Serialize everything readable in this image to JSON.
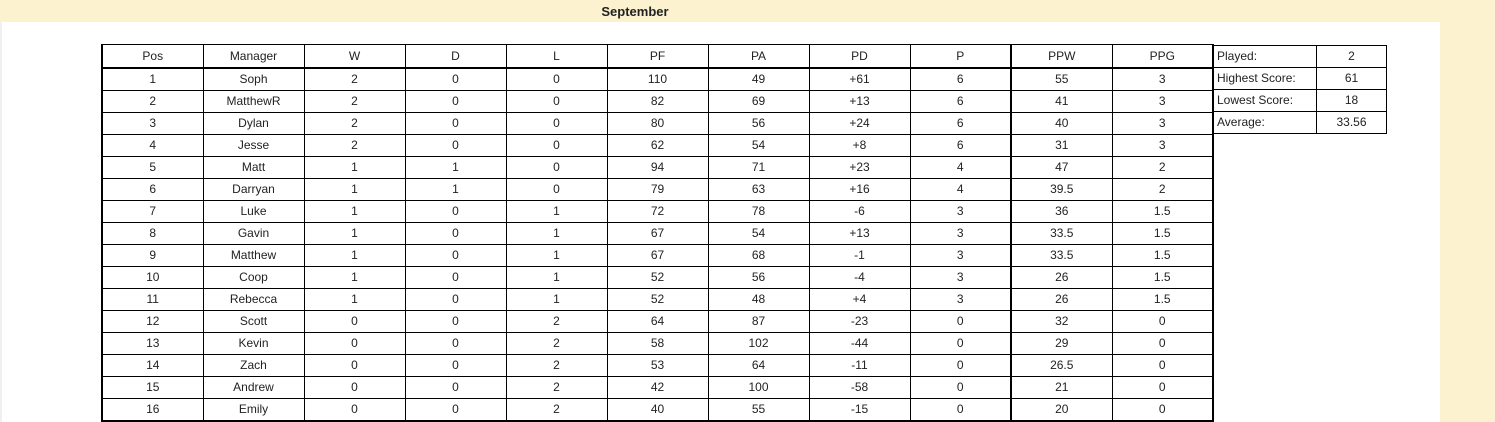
{
  "sheet": {
    "title": "September"
  },
  "standings": {
    "headers": {
      "pos": "Pos",
      "manager": "Manager",
      "w": "W",
      "d": "D",
      "l": "L",
      "pf": "PF",
      "pa": "PA",
      "pd": "PD",
      "p": "P",
      "ppw": "PPW",
      "ppg": "PPG"
    },
    "rows": [
      {
        "pos": "1",
        "manager": "Soph",
        "w": "2",
        "d": "0",
        "l": "0",
        "pf": "110",
        "pa": "49",
        "pd": "+61",
        "p": "6",
        "ppw": "55",
        "ppg": "3"
      },
      {
        "pos": "2",
        "manager": "MatthewR",
        "w": "2",
        "d": "0",
        "l": "0",
        "pf": "82",
        "pa": "69",
        "pd": "+13",
        "p": "6",
        "ppw": "41",
        "ppg": "3"
      },
      {
        "pos": "3",
        "manager": "Dylan",
        "w": "2",
        "d": "0",
        "l": "0",
        "pf": "80",
        "pa": "56",
        "pd": "+24",
        "p": "6",
        "ppw": "40",
        "ppg": "3"
      },
      {
        "pos": "4",
        "manager": "Jesse",
        "w": "2",
        "d": "0",
        "l": "0",
        "pf": "62",
        "pa": "54",
        "pd": "+8",
        "p": "6",
        "ppw": "31",
        "ppg": "3"
      },
      {
        "pos": "5",
        "manager": "Matt",
        "w": "1",
        "d": "1",
        "l": "0",
        "pf": "94",
        "pa": "71",
        "pd": "+23",
        "p": "4",
        "ppw": "47",
        "ppg": "2"
      },
      {
        "pos": "6",
        "manager": "Darryan",
        "w": "1",
        "d": "1",
        "l": "0",
        "pf": "79",
        "pa": "63",
        "pd": "+16",
        "p": "4",
        "ppw": "39.5",
        "ppg": "2"
      },
      {
        "pos": "7",
        "manager": "Luke",
        "w": "1",
        "d": "0",
        "l": "1",
        "pf": "72",
        "pa": "78",
        "pd": "-6",
        "p": "3",
        "ppw": "36",
        "ppg": "1.5"
      },
      {
        "pos": "8",
        "manager": "Gavin",
        "w": "1",
        "d": "0",
        "l": "1",
        "pf": "67",
        "pa": "54",
        "pd": "+13",
        "p": "3",
        "ppw": "33.5",
        "ppg": "1.5"
      },
      {
        "pos": "9",
        "manager": "Matthew",
        "w": "1",
        "d": "0",
        "l": "1",
        "pf": "67",
        "pa": "68",
        "pd": "-1",
        "p": "3",
        "ppw": "33.5",
        "ppg": "1.5"
      },
      {
        "pos": "10",
        "manager": "Coop",
        "w": "1",
        "d": "0",
        "l": "1",
        "pf": "52",
        "pa": "56",
        "pd": "-4",
        "p": "3",
        "ppw": "26",
        "ppg": "1.5"
      },
      {
        "pos": "11",
        "manager": "Rebecca",
        "w": "1",
        "d": "0",
        "l": "1",
        "pf": "52",
        "pa": "48",
        "pd": "+4",
        "p": "3",
        "ppw": "26",
        "ppg": "1.5"
      },
      {
        "pos": "12",
        "manager": "Scott",
        "w": "0",
        "d": "0",
        "l": "2",
        "pf": "64",
        "pa": "87",
        "pd": "-23",
        "p": "0",
        "ppw": "32",
        "ppg": "0"
      },
      {
        "pos": "13",
        "manager": "Kevin",
        "w": "0",
        "d": "0",
        "l": "2",
        "pf": "58",
        "pa": "102",
        "pd": "-44",
        "p": "0",
        "ppw": "29",
        "ppg": "0"
      },
      {
        "pos": "14",
        "manager": "Zach",
        "w": "0",
        "d": "0",
        "l": "2",
        "pf": "53",
        "pa": "64",
        "pd": "-11",
        "p": "0",
        "ppw": "26.5",
        "ppg": "0"
      },
      {
        "pos": "15",
        "manager": "Andrew",
        "w": "0",
        "d": "0",
        "l": "2",
        "pf": "42",
        "pa": "100",
        "pd": "-58",
        "p": "0",
        "ppw": "21",
        "ppg": "0"
      },
      {
        "pos": "16",
        "manager": "Emily",
        "w": "0",
        "d": "0",
        "l": "2",
        "pf": "40",
        "pa": "55",
        "pd": "-15",
        "p": "0",
        "ppw": "20",
        "ppg": "0"
      }
    ]
  },
  "stats": {
    "items": [
      {
        "label": "Played:",
        "value": "2"
      },
      {
        "label": "Highest Score:",
        "value": "61"
      },
      {
        "label": "Lowest Score:",
        "value": "18"
      },
      {
        "label": "Average:",
        "value": "33.56"
      }
    ]
  },
  "colors": {
    "header_band": "#fdf2cf",
    "border": "#000000"
  }
}
